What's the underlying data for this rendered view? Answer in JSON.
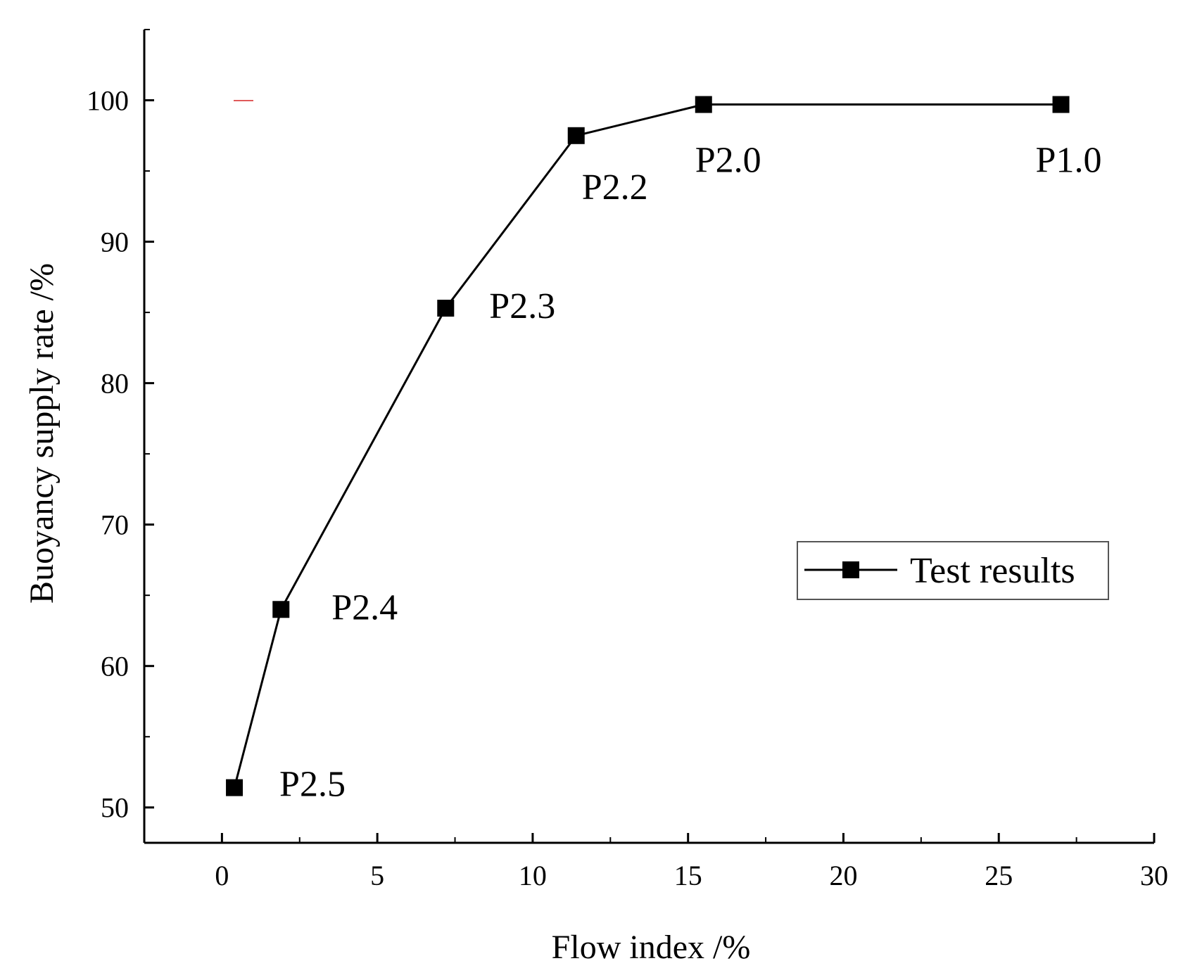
{
  "chart_data": {
    "type": "line",
    "xlabel": "Flow index /%",
    "ylabel": "Buoyancy supply rate /%",
    "xlim": [
      -2.5,
      30
    ],
    "ylim": [
      47.5,
      105
    ],
    "x_ticks": [
      0,
      5,
      10,
      15,
      20,
      25,
      30
    ],
    "y_ticks": [
      50,
      60,
      70,
      80,
      90,
      100
    ],
    "legend_position": "right",
    "grid": false,
    "series": [
      {
        "name": "Test results",
        "color": "#000000",
        "marker": "square",
        "points": [
          {
            "x": 0.4,
            "y": 51.4,
            "label": "P2.5"
          },
          {
            "x": 1.9,
            "y": 64.0,
            "label": "P2.4"
          },
          {
            "x": 7.2,
            "y": 85.3,
            "label": "P2.3"
          },
          {
            "x": 11.4,
            "y": 97.5,
            "label": "P2.2"
          },
          {
            "x": 15.5,
            "y": 99.7,
            "label": "P2.0"
          },
          {
            "x": 27.0,
            "y": 99.7,
            "label": "P1.0"
          }
        ]
      }
    ]
  }
}
